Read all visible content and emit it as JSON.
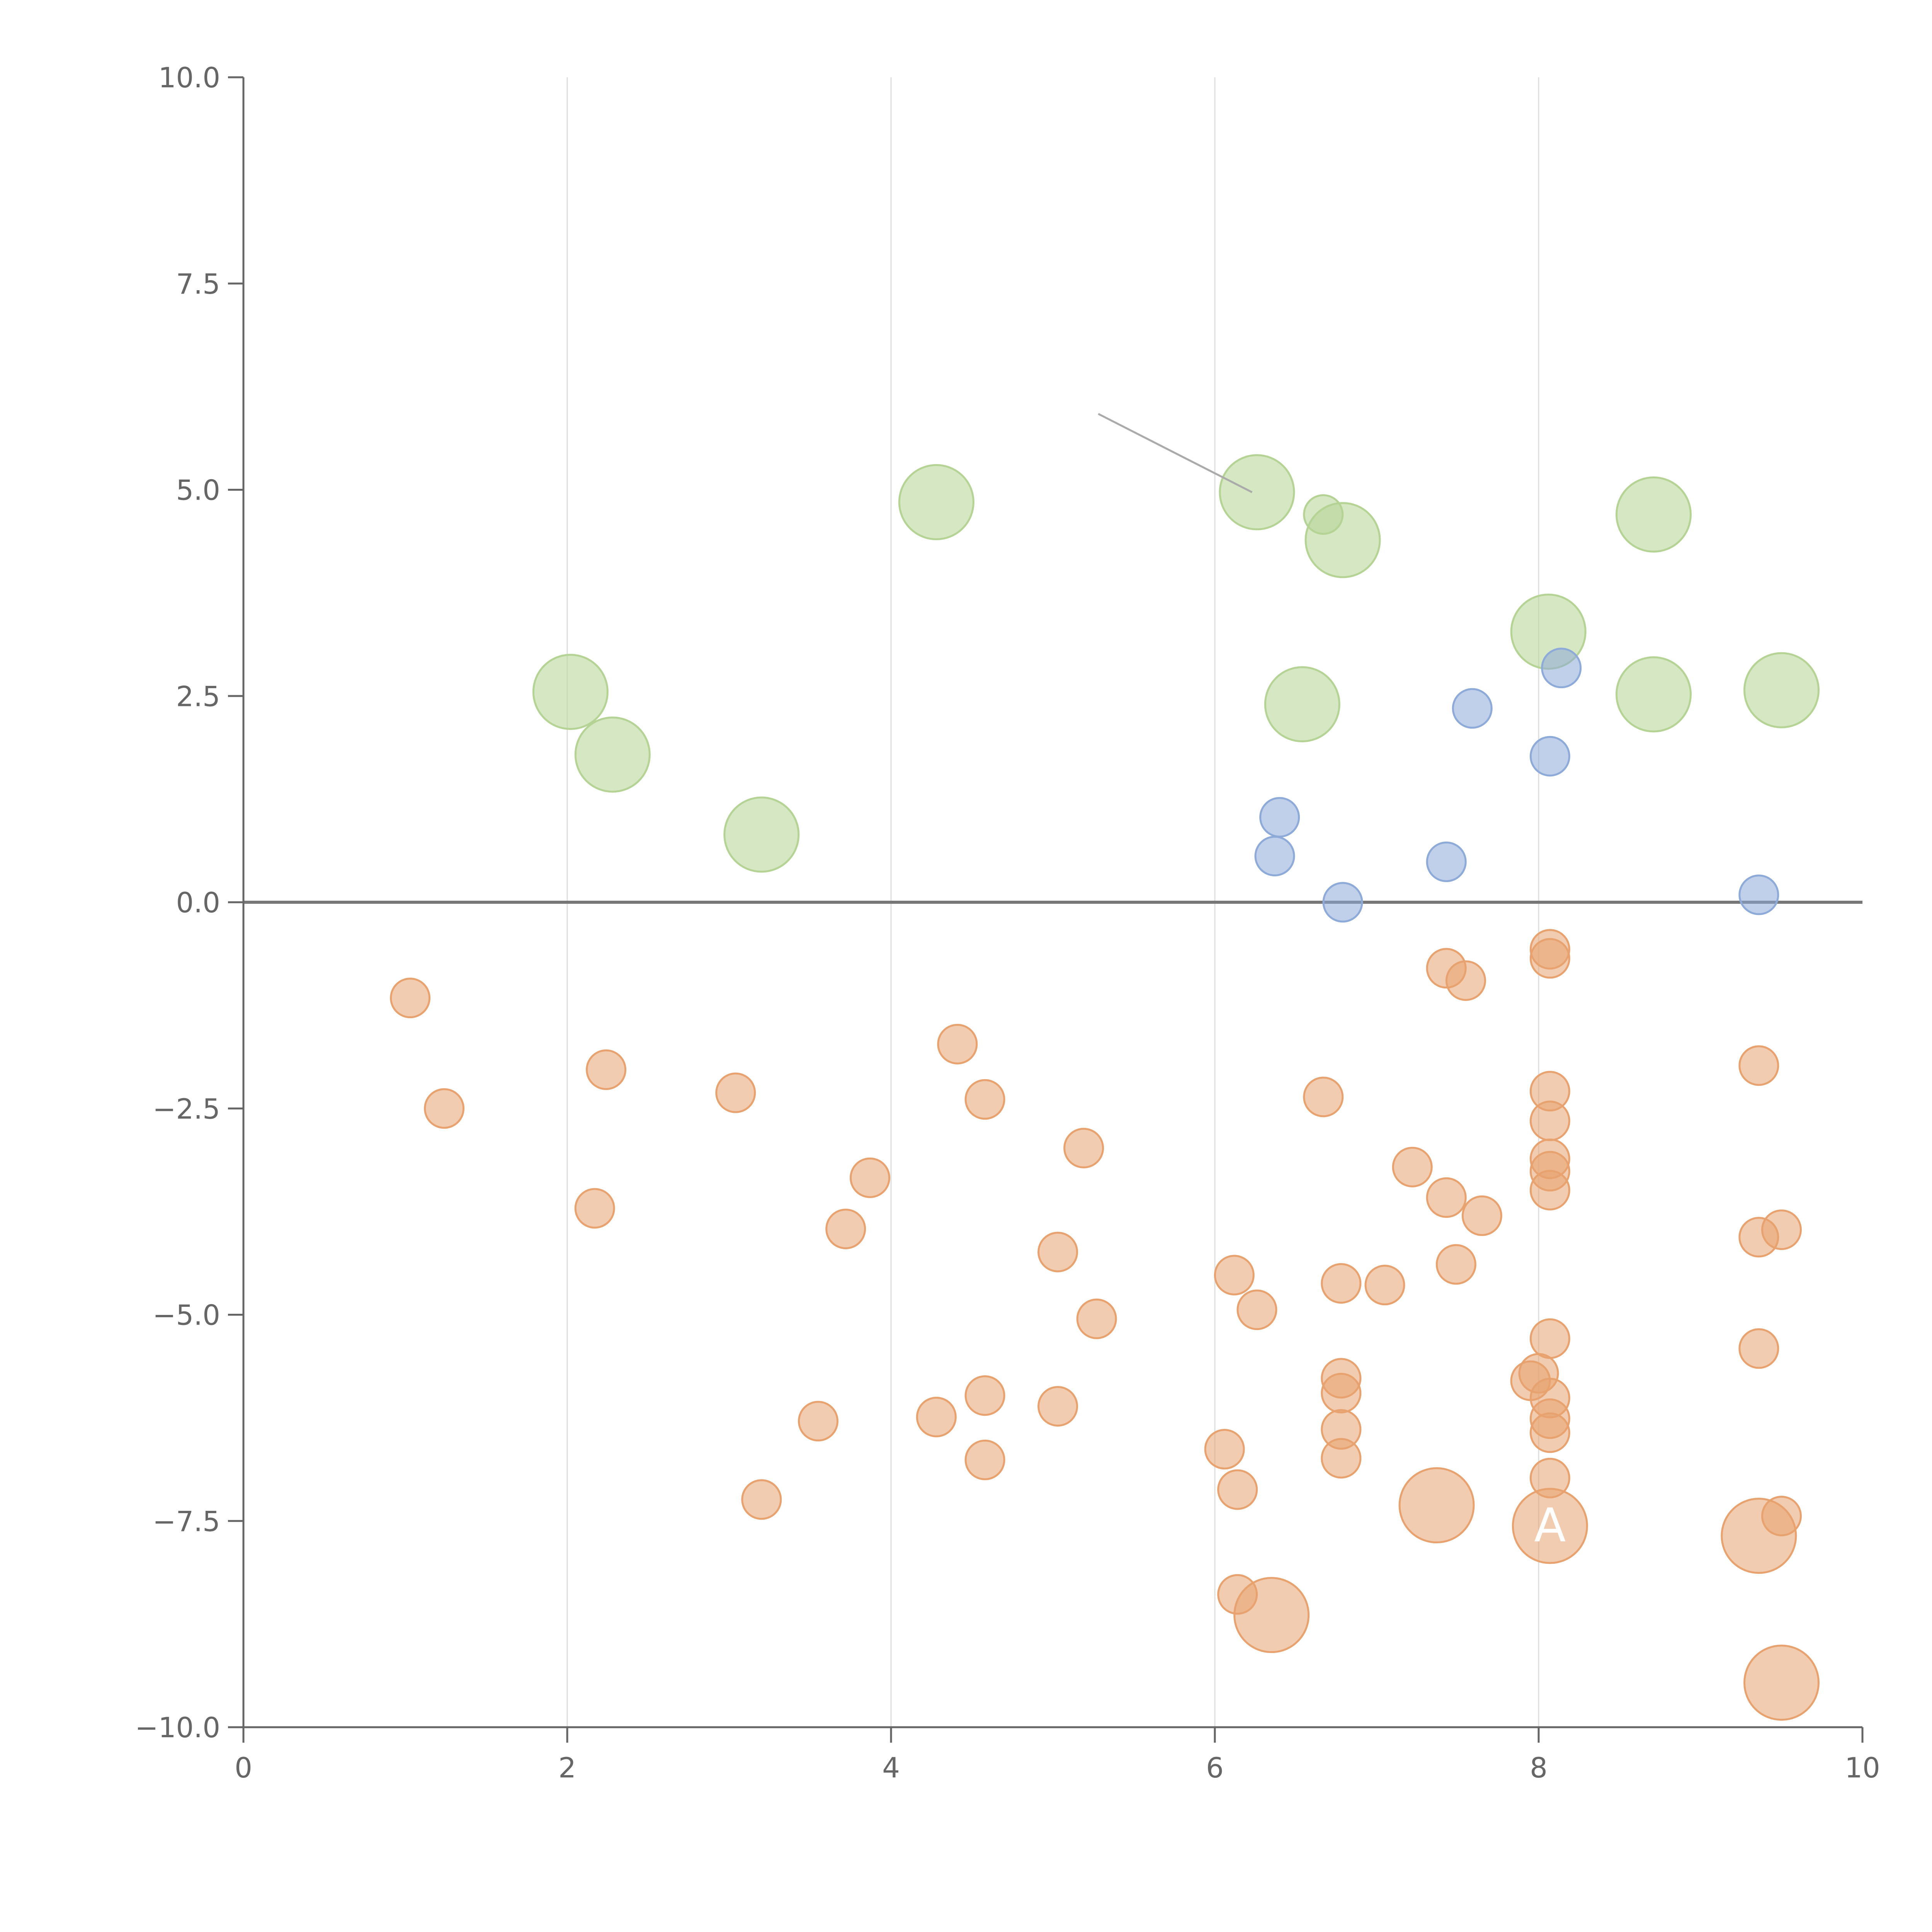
{
  "chart_data": {
    "type": "scatter",
    "title": "",
    "xlabel": "",
    "ylabel": "",
    "xlim": [
      0,
      10
    ],
    "ylim": [
      -10,
      10
    ],
    "x_ticks": [
      0,
      2,
      4,
      6,
      8,
      10
    ],
    "x_tick_labels": [
      "0",
      "2",
      "4",
      "6",
      "8",
      "10"
    ],
    "y_ticks": [
      -10,
      -7.5,
      -5,
      -2.5,
      0,
      2.5,
      5,
      7.5,
      10
    ],
    "y_tick_labels": [
      "−10.0",
      "−7.5",
      "−5.0",
      "−2.5",
      "0.0",
      "2.5",
      "5.0",
      "7.5",
      "10.0"
    ],
    "grid": "vertical",
    "zero_line": true,
    "colors": {
      "green": "#b5d394",
      "blue": "#8eaad8",
      "orange": "#e8a26f",
      "axis": "#666666",
      "grid": "#dddddd",
      "zero_line": "#777777"
    },
    "series": [
      {
        "color": "green",
        "points": [
          {
            "x": 2.02,
            "y": 2.55,
            "size": "large"
          },
          {
            "x": 2.28,
            "y": 1.79,
            "size": "large"
          },
          {
            "x": 3.2,
            "y": 0.82,
            "size": "large"
          },
          {
            "x": 4.28,
            "y": 4.85,
            "size": "large"
          },
          {
            "x": 6.26,
            "y": 4.97,
            "size": "large"
          },
          {
            "x": 6.67,
            "y": 4.7,
            "size": "small"
          },
          {
            "x": 6.79,
            "y": 4.39,
            "size": "large"
          },
          {
            "x": 6.54,
            "y": 2.4,
            "size": "large"
          },
          {
            "x": 8.06,
            "y": 3.28,
            "size": "large"
          },
          {
            "x": 8.71,
            "y": 4.7,
            "size": "large"
          },
          {
            "x": 8.71,
            "y": 2.52,
            "size": "large"
          },
          {
            "x": 9.5,
            "y": 2.57,
            "size": "large"
          }
        ]
      },
      {
        "color": "blue",
        "points": [
          {
            "x": 6.4,
            "y": 1.03,
            "size": "small"
          },
          {
            "x": 6.37,
            "y": 0.56,
            "size": "small"
          },
          {
            "x": 6.79,
            "y": 0.0,
            "size": "small"
          },
          {
            "x": 7.43,
            "y": 0.49,
            "size": "small"
          },
          {
            "x": 7.59,
            "y": 2.35,
            "size": "small"
          },
          {
            "x": 8.07,
            "y": 1.77,
            "size": "small"
          },
          {
            "x": 8.14,
            "y": 2.84,
            "size": "small"
          },
          {
            "x": 9.36,
            "y": 0.09,
            "size": "small"
          }
        ]
      },
      {
        "color": "orange",
        "points": [
          {
            "x": 1.03,
            "y": -1.16,
            "size": "small"
          },
          {
            "x": 1.24,
            "y": -2.5,
            "size": "small"
          },
          {
            "x": 2.24,
            "y": -2.03,
            "size": "small"
          },
          {
            "x": 2.17,
            "y": -3.71,
            "size": "small"
          },
          {
            "x": 3.04,
            "y": -2.31,
            "size": "small"
          },
          {
            "x": 3.2,
            "y": -7.24,
            "size": "small"
          },
          {
            "x": 3.55,
            "y": -6.29,
            "size": "small"
          },
          {
            "x": 3.72,
            "y": -3.96,
            "size": "small"
          },
          {
            "x": 3.87,
            "y": -3.34,
            "size": "small"
          },
          {
            "x": 4.28,
            "y": -6.24,
            "size": "small"
          },
          {
            "x": 4.41,
            "y": -1.72,
            "size": "small"
          },
          {
            "x": 4.58,
            "y": -2.39,
            "size": "small"
          },
          {
            "x": 4.58,
            "y": -5.98,
            "size": "small"
          },
          {
            "x": 4.58,
            "y": -6.76,
            "size": "small"
          },
          {
            "x": 5.03,
            "y": -4.24,
            "size": "small"
          },
          {
            "x": 5.03,
            "y": -6.11,
            "size": "small"
          },
          {
            "x": 5.19,
            "y": -2.98,
            "size": "small"
          },
          {
            "x": 5.27,
            "y": -5.05,
            "size": "small"
          },
          {
            "x": 6.06,
            "y": -6.63,
            "size": "small"
          },
          {
            "x": 6.12,
            "y": -4.52,
            "size": "small"
          },
          {
            "x": 6.14,
            "y": -7.12,
            "size": "small"
          },
          {
            "x": 6.14,
            "y": -8.39,
            "size": "small"
          },
          {
            "x": 6.26,
            "y": -4.94,
            "size": "small"
          },
          {
            "x": 6.35,
            "y": -8.64,
            "size": "large"
          },
          {
            "x": 6.67,
            "y": -2.36,
            "size": "small"
          },
          {
            "x": 6.78,
            "y": -4.62,
            "size": "small"
          },
          {
            "x": 6.78,
            "y": -5.77,
            "size": "small"
          },
          {
            "x": 6.78,
            "y": -5.95,
            "size": "small"
          },
          {
            "x": 6.78,
            "y": -6.39,
            "size": "small"
          },
          {
            "x": 6.78,
            "y": -6.74,
            "size": "small"
          },
          {
            "x": 7.05,
            "y": -4.64,
            "size": "small"
          },
          {
            "x": 7.22,
            "y": -3.21,
            "size": "small"
          },
          {
            "x": 7.37,
            "y": -7.31,
            "size": "large"
          },
          {
            "x": 7.43,
            "y": -0.8,
            "size": "small"
          },
          {
            "x": 7.43,
            "y": -3.58,
            "size": "small"
          },
          {
            "x": 7.49,
            "y": -4.39,
            "size": "small"
          },
          {
            "x": 7.55,
            "y": -0.95,
            "size": "small"
          },
          {
            "x": 7.65,
            "y": -3.8,
            "size": "small"
          },
          {
            "x": 7.95,
            "y": -5.8,
            "size": "small"
          },
          {
            "x": 8.0,
            "y": -5.71,
            "size": "small"
          },
          {
            "x": 8.07,
            "y": -0.57,
            "size": "small"
          },
          {
            "x": 8.07,
            "y": -0.68,
            "size": "small"
          },
          {
            "x": 8.07,
            "y": -2.29,
            "size": "small"
          },
          {
            "x": 8.07,
            "y": -2.65,
            "size": "small"
          },
          {
            "x": 8.07,
            "y": -3.11,
            "size": "small"
          },
          {
            "x": 8.07,
            "y": -3.26,
            "size": "small"
          },
          {
            "x": 8.07,
            "y": -3.49,
            "size": "small"
          },
          {
            "x": 8.07,
            "y": -5.29,
            "size": "small"
          },
          {
            "x": 8.07,
            "y": -6.01,
            "size": "small"
          },
          {
            "x": 8.07,
            "y": -6.26,
            "size": "small"
          },
          {
            "x": 8.07,
            "y": -6.43,
            "size": "small"
          },
          {
            "x": 8.07,
            "y": -6.98,
            "size": "small"
          },
          {
            "x": 8.07,
            "y": -7.56,
            "size": "large"
          },
          {
            "x": 9.36,
            "y": -1.98,
            "size": "small"
          },
          {
            "x": 9.36,
            "y": -4.06,
            "size": "small"
          },
          {
            "x": 9.36,
            "y": -5.41,
            "size": "small"
          },
          {
            "x": 9.36,
            "y": -7.68,
            "size": "large"
          },
          {
            "x": 9.5,
            "y": -3.97,
            "size": "small"
          },
          {
            "x": 9.5,
            "y": -7.44,
            "size": "small"
          },
          {
            "x": 9.5,
            "y": -9.46,
            "size": "large"
          }
        ]
      }
    ],
    "annotations": [
      {
        "text": "A",
        "x": 8.07,
        "y": -7.56
      }
    ],
    "leader_line": {
      "x1": 5.28,
      "y1": 5.92,
      "x2": 6.23,
      "y2": 4.97,
      "color": "#aaaaaa"
    }
  }
}
